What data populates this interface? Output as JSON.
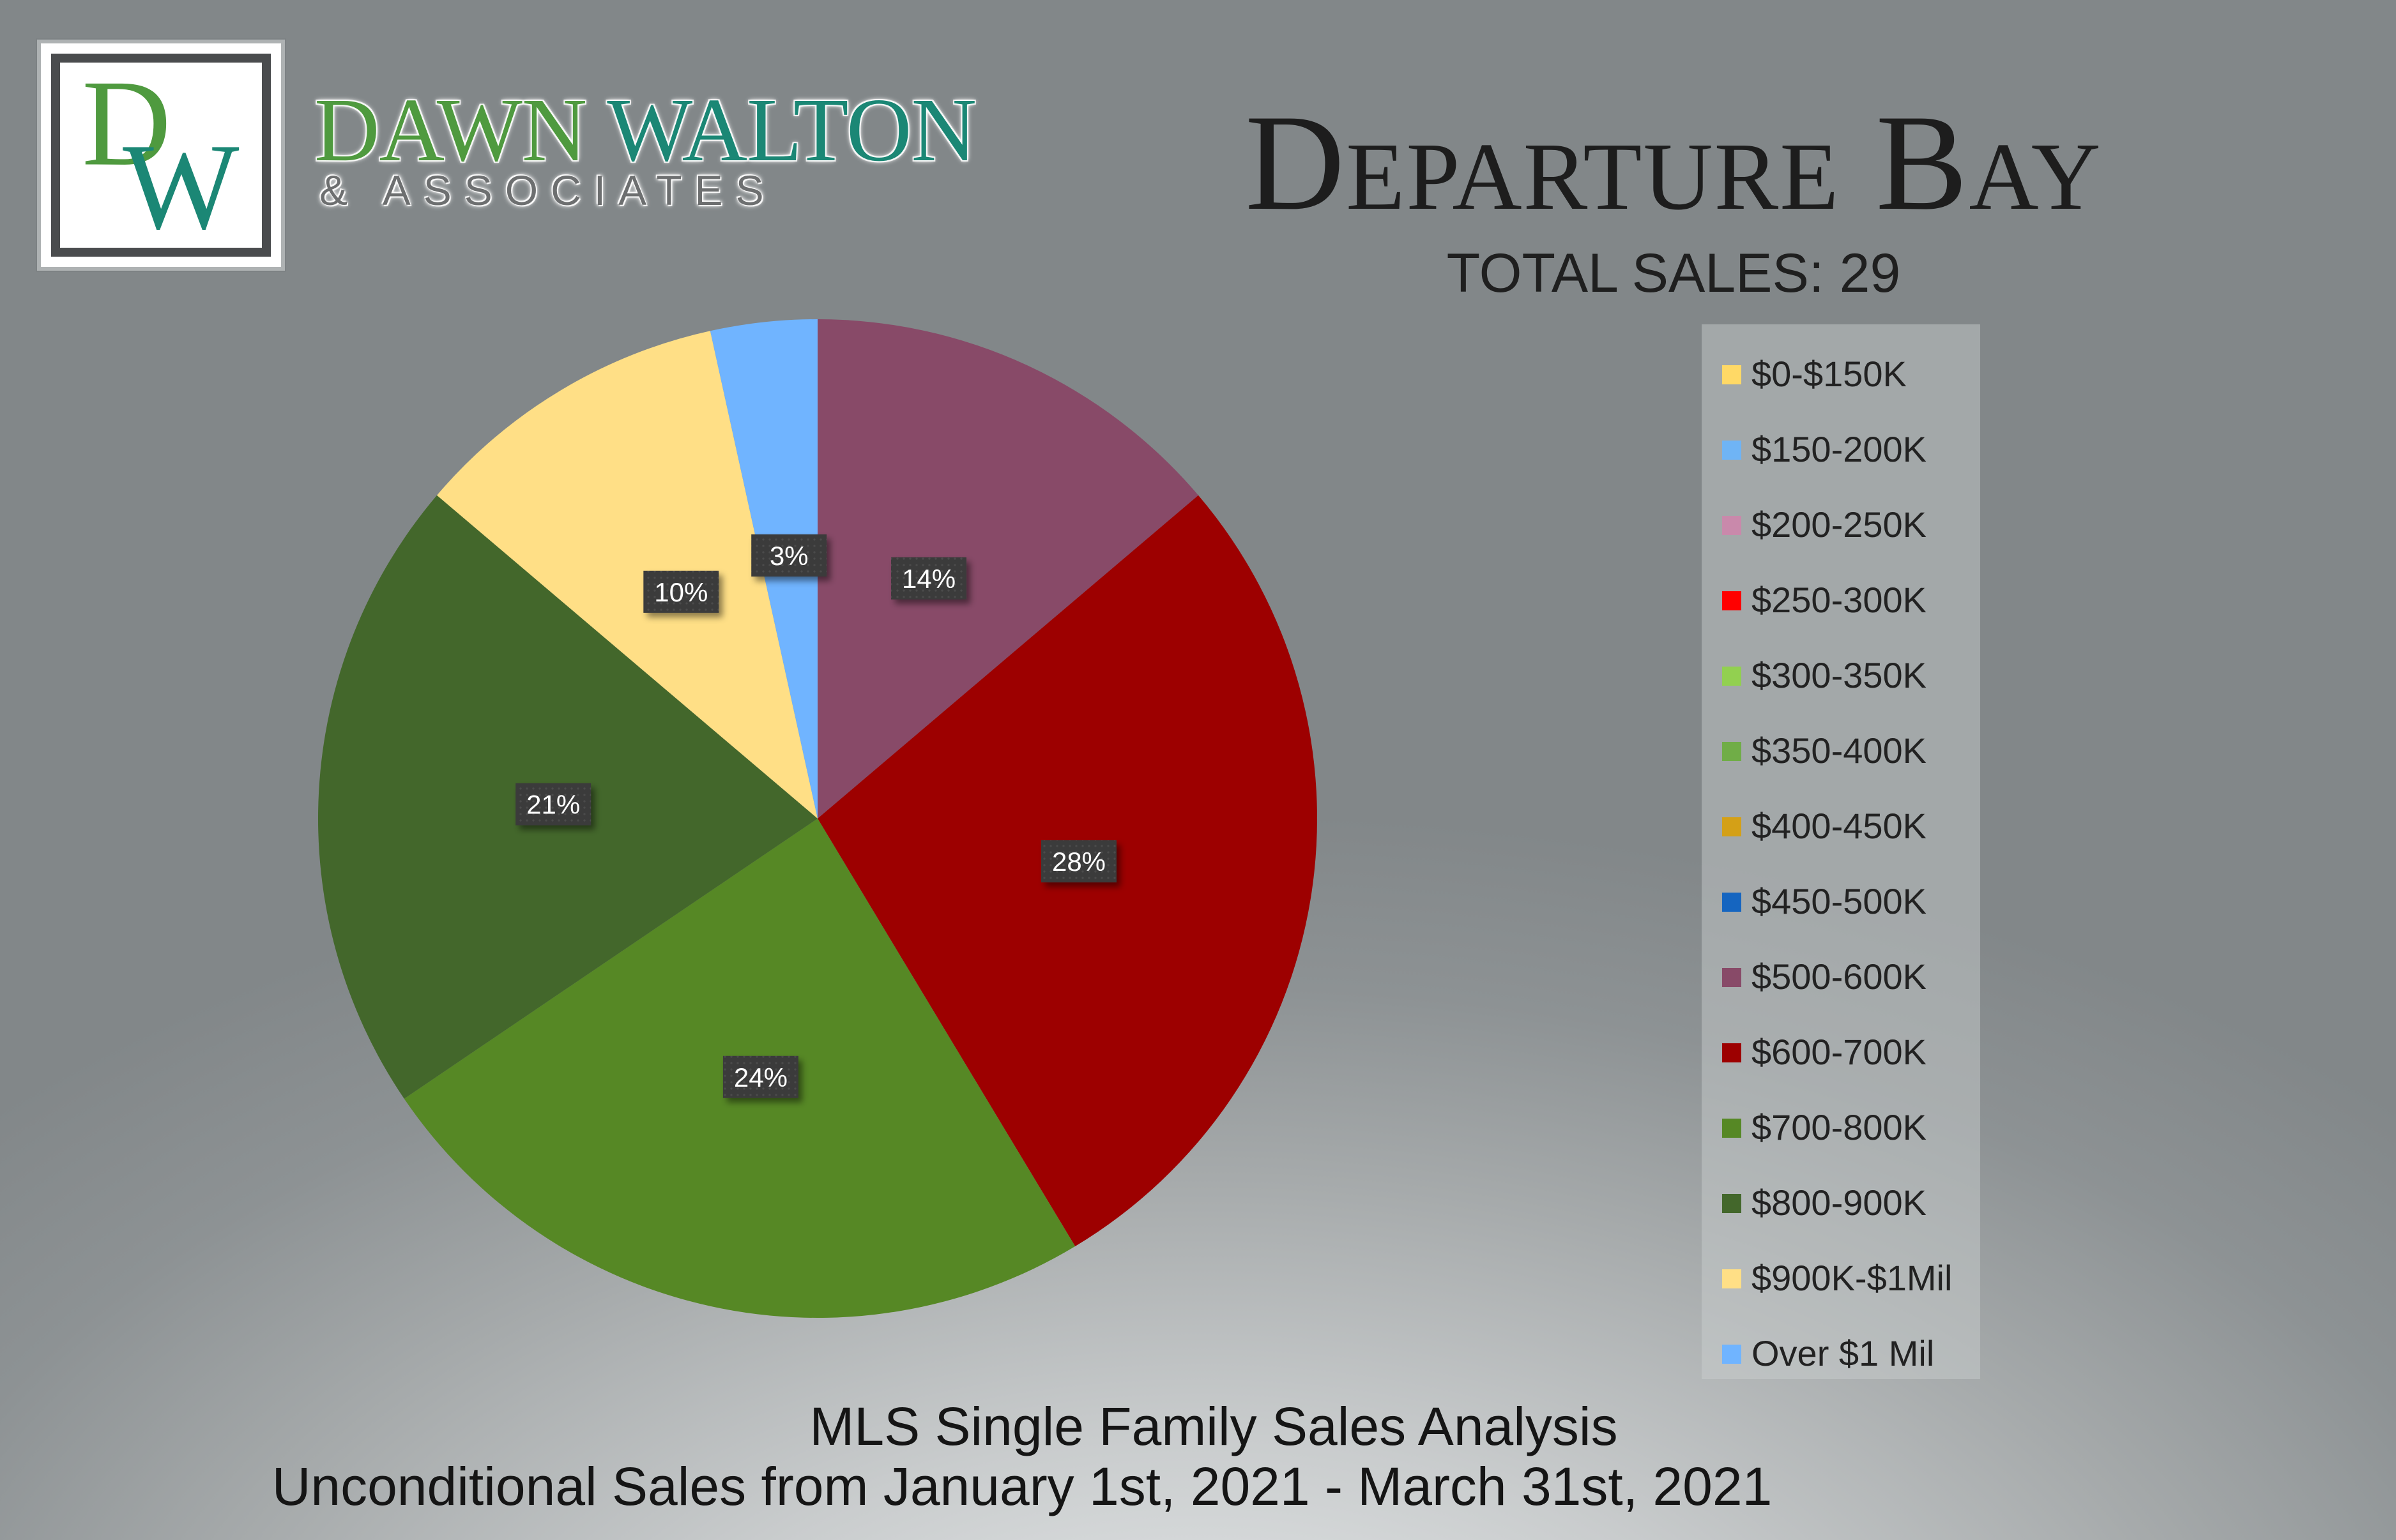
{
  "logo": {
    "monogram": "DW",
    "line1_a": "DAWN",
    "line1_b": "WALTON",
    "line2": "& ASSOCIATES"
  },
  "header": {
    "title": "Departure Bay",
    "total_sales": "TOTAL SALES: 29"
  },
  "footer": {
    "line1": "MLS Single Family Sales Analysis",
    "line2": "Unconditional Sales from January 1st, 2021 - March 31st, 2021"
  },
  "chart_data": {
    "type": "pie",
    "title": "",
    "categories": [
      "$0-$150K",
      "$150-200K",
      "$200-250K",
      "$250-300K",
      "$300-350K",
      "$350-400K",
      "$400-450K",
      "$450-500K",
      "$500-600K",
      "$600-700K",
      "$700-800K",
      "$800-900K",
      "$900K-$1Mil",
      "Over $1 Mil"
    ],
    "values": [
      0,
      0,
      0,
      0,
      0,
      0,
      0,
      0,
      4,
      8,
      7,
      6,
      3,
      1
    ],
    "colors": [
      "#ffd966",
      "#6fb4f5",
      "#c989ab",
      "#ff0000",
      "#92d050",
      "#70ad47",
      "#d4a017",
      "#1565c0",
      "#884a68",
      "#9d0000",
      "#568825",
      "#43672b",
      "#ffdf86",
      "#70b4ff"
    ],
    "data_labels": [
      "",
      "",
      "",
      "",
      "",
      "",
      "",
      "",
      "14%",
      "28%",
      "24%",
      "21%",
      "10%",
      "3%"
    ],
    "legend_position": "right",
    "start_angle_deg": 0,
    "direction": "clockwise"
  }
}
